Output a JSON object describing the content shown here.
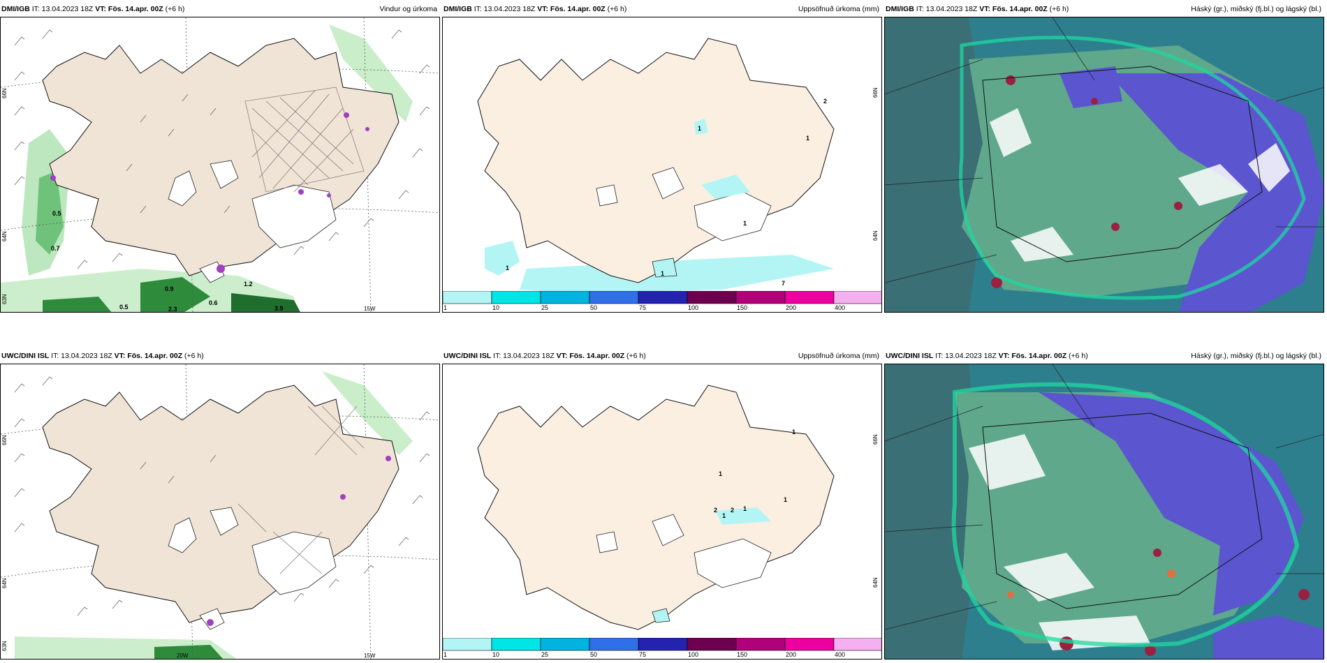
{
  "rows": [
    {
      "model": "DMI/IGB",
      "it_label": "IT: 13.04.2023 18Z",
      "vt_label": "VT: Fös. 14.apr. 00Z",
      "lead": "(+6 h)"
    },
    {
      "model": "UWC/DINI ISL",
      "it_label": "IT: 13.04.2023 18Z",
      "vt_label": "VT: Fös. 14.apr. 00Z",
      "lead": "(+6 h)"
    }
  ],
  "panel_titles": {
    "wind": "Vindur og úrkoma",
    "precip": "Uppsöfnuð úrkoma (mm)",
    "cloud": "Háský (gr.), miðský (fj.bl.) og lágský (bl.)"
  },
  "axis_labels": {
    "lat66": "66N",
    "lat64": "64N",
    "lat63": "63N",
    "lon15": "15W",
    "lon20": "20W"
  },
  "wind_labels_top": [
    "0.5",
    "0.7",
    "0.9",
    "0.6",
    "0.5",
    "2.3",
    "3.9",
    "1.2"
  ],
  "precip_labels_top": [
    "1",
    "1",
    "1",
    "1",
    "7",
    "1",
    "2"
  ],
  "precip_labels_bottom": [
    "1",
    "1",
    "2",
    "2",
    "1",
    "1",
    "1"
  ],
  "colorbar": {
    "ticks": [
      "1",
      "10",
      "25",
      "50",
      "75",
      "100",
      "150",
      "200",
      "400"
    ],
    "colors": [
      "#b3f5f5",
      "#00e5e5",
      "#00b4e0",
      "#2f6fe8",
      "#2323b0",
      "#6e0050",
      "#b0007a",
      "#ee00a0",
      "#f5b0f0"
    ]
  },
  "colors": {
    "land": "#f0e4d6",
    "land_precip": "#fbefe2",
    "sea_cloud": "#2e7f8e",
    "cloud_high": "#5b55cf",
    "cloud_mid": "#5fa88c",
    "cloud_low": "#1fd8a0",
    "precip_green": "#2e8b3c"
  }
}
